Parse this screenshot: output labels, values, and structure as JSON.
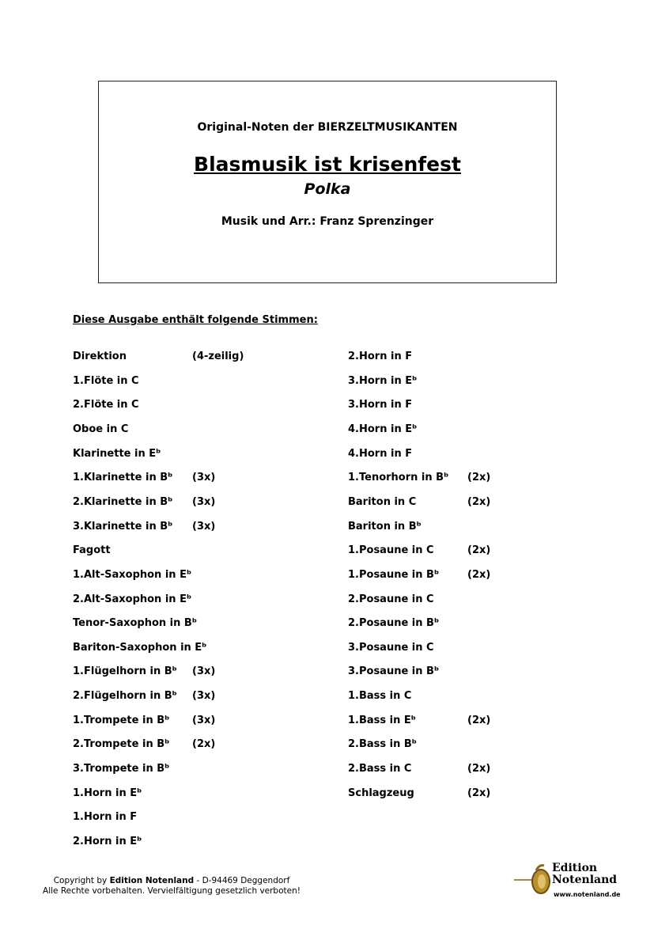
{
  "header": {
    "subtitle": "Original-Noten der BIERZELTMUSIKANTEN",
    "title": "Blasmusik ist krisenfest",
    "genre": "Polka",
    "composer": "Musik und Arr.: Franz Sprenzinger"
  },
  "parts_heading": "Diese Ausgabe enthält folgende Stimmen:",
  "left_parts": [
    {
      "name": "Direktion",
      "note": "(4-zeilig)"
    },
    {
      "name": "1.Flöte in C",
      "note": ""
    },
    {
      "name": "2.Flöte in C",
      "note": ""
    },
    {
      "name": "Oboe in C",
      "note": ""
    },
    {
      "name": "Klarinette in Eᵇ",
      "note": ""
    },
    {
      "name": "1.Klarinette in Bᵇ",
      "note": "(3x)"
    },
    {
      "name": "2.Klarinette in Bᵇ",
      "note": "(3x)"
    },
    {
      "name": "3.Klarinette in Bᵇ",
      "note": "(3x)"
    },
    {
      "name": "Fagott",
      "note": ""
    },
    {
      "name": "1.Alt-Saxophon in Eᵇ",
      "note": ""
    },
    {
      "name": "2.Alt-Saxophon in Eᵇ",
      "note": ""
    },
    {
      "name": "Tenor-Saxophon in Bᵇ",
      "note": ""
    },
    {
      "name": "Bariton-Saxophon in Eᵇ",
      "note": ""
    },
    {
      "name": "1.Flügelhorn in Bᵇ",
      "note": "(3x)"
    },
    {
      "name": "2.Flügelhorn in Bᵇ",
      "note": "(3x)"
    },
    {
      "name": "1.Trompete in Bᵇ",
      "note": "(3x)"
    },
    {
      "name": "2.Trompete in Bᵇ",
      "note": "(2x)"
    },
    {
      "name": "3.Trompete in Bᵇ",
      "note": ""
    },
    {
      "name": "1.Horn in Eᵇ",
      "note": ""
    },
    {
      "name": "1.Horn in F",
      "note": ""
    },
    {
      "name": "2.Horn in Eᵇ",
      "note": ""
    }
  ],
  "right_parts": [
    {
      "name": "2.Horn in F",
      "note": ""
    },
    {
      "name": "3.Horn in Eᵇ",
      "note": ""
    },
    {
      "name": "3.Horn in F",
      "note": ""
    },
    {
      "name": "4.Horn in Eᵇ",
      "note": ""
    },
    {
      "name": "4.Horn in F",
      "note": ""
    },
    {
      "name": "1.Tenorhorn in Bᵇ",
      "note": "(2x)"
    },
    {
      "name": "Bariton in C",
      "note": "(2x)"
    },
    {
      "name": "Bariton in Bᵇ",
      "note": ""
    },
    {
      "name": "1.Posaune in C",
      "note": "(2x)"
    },
    {
      "name": "1.Posaune in Bᵇ",
      "note": "(2x)"
    },
    {
      "name": "2.Posaune in C",
      "note": ""
    },
    {
      "name": "2.Posaune in Bᵇ",
      "note": ""
    },
    {
      "name": "3.Posaune in C",
      "note": ""
    },
    {
      "name": "3.Posaune in Bᵇ",
      "note": ""
    },
    {
      "name": "1.Bass in C",
      "note": ""
    },
    {
      "name": "1.Bass in Eᵇ",
      "note": "(2x)"
    },
    {
      "name": "2.Bass in Bᵇ",
      "note": ""
    },
    {
      "name": "2.Bass in C",
      "note": "(2x)"
    },
    {
      "name": "Schlagzeug",
      "note": "(2x)"
    }
  ],
  "footer": {
    "copyright_prefix": "Copyright by ",
    "publisher": "Edition Notenland",
    "copyright_suffix": " - D-94469 Deggendorf",
    "rights": "Alle Rechte vorbehalten. Vervielfältigung gesetzlich verboten!"
  },
  "logo": {
    "line1": "Edition",
    "line2": "Notenland",
    "url": "www.notenland.de",
    "icon": "flugelhorn-icon"
  }
}
